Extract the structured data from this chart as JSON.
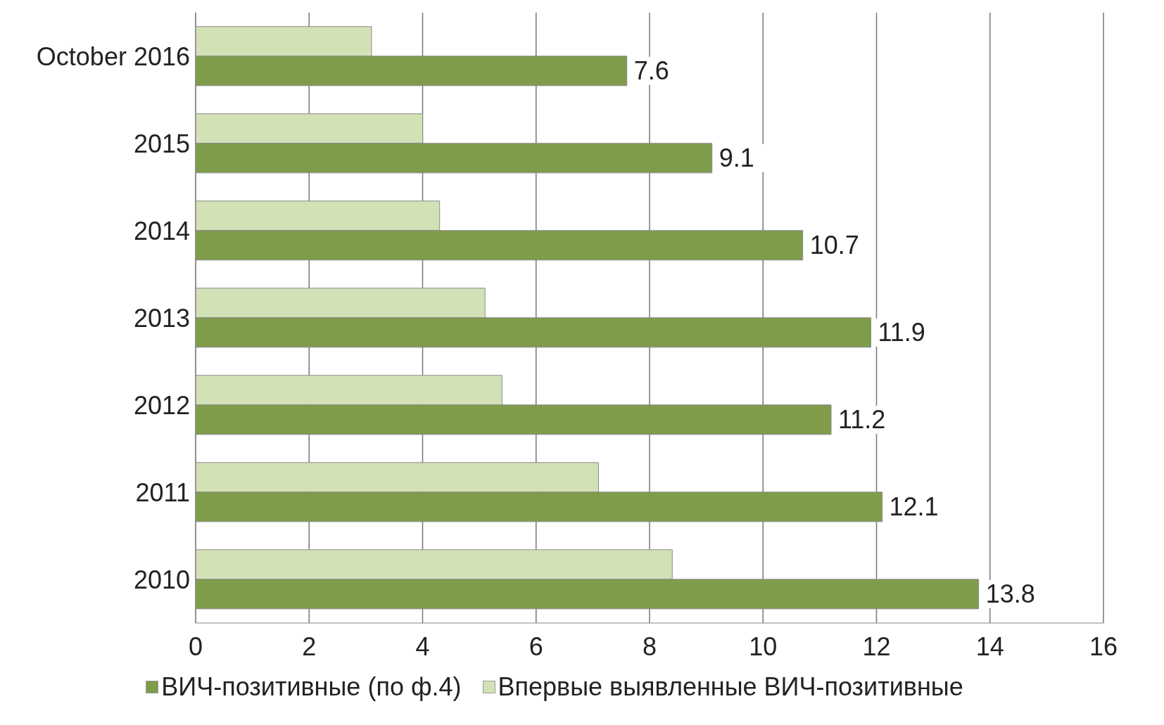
{
  "chart_data": {
    "type": "bar",
    "orientation": "horizontal",
    "categories": [
      "October 2016",
      "2015",
      "2014",
      "2013",
      "2012",
      "2011",
      "2010"
    ],
    "series": [
      {
        "name": "ВИЧ-позитивные (по ф.4)",
        "color": "#7f9c4a",
        "values": [
          7.6,
          9.1,
          10.7,
          11.9,
          11.2,
          12.1,
          13.8
        ],
        "value_labels": [
          "7.6",
          "9.1",
          "10.7",
          "11.9",
          "11.2",
          "12.1",
          "13.8"
        ]
      },
      {
        "name": "Впервые выявленные ВИЧ-позитивные",
        "color": "#d3e2b6",
        "values": [
          3.1,
          4.0,
          4.3,
          5.1,
          5.4,
          7.1,
          8.4
        ]
      }
    ],
    "xlim": [
      0,
      16
    ],
    "xticks": [
      0,
      2,
      4,
      6,
      8,
      10,
      12,
      14,
      16
    ],
    "grid": "x",
    "legend": "bottom"
  }
}
